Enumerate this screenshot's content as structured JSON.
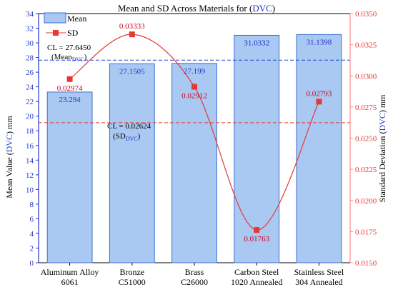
{
  "chart_data": {
    "type": "bar",
    "title": {
      "pre": "Mean and SD Across Materials for (",
      "highlight": "DVC",
      "post": ")"
    },
    "categories": [
      [
        "Aluminum Alloy",
        "6061"
      ],
      [
        "Bronze",
        "C51000"
      ],
      [
        "Brass",
        "C26000"
      ],
      [
        "Carbon Steel",
        "1020 Annealed"
      ],
      [
        "Stainless Steel",
        "304 Annealed"
      ]
    ],
    "series": [
      {
        "name": "Mean",
        "axis": "left",
        "type": "bar",
        "values": [
          23.294,
          27.1505,
          27.199,
          31.0332,
          31.1398
        ],
        "labels": [
          "23.294",
          "27.1505",
          "27.199",
          "31.0332",
          "31.1398"
        ]
      },
      {
        "name": "SD",
        "axis": "right",
        "type": "line",
        "values": [
          0.02974,
          0.03333,
          0.02912,
          0.01763,
          0.02793
        ],
        "labels": [
          "0.02974",
          "0.03333",
          "0.02912",
          "0.01763",
          "0.02793"
        ]
      }
    ],
    "y_left": {
      "label_pre": "Mean Value (",
      "label_highlight": "DVC",
      "label_post": ") mm",
      "range": [
        0,
        34
      ],
      "ticks": [
        "0",
        "2",
        "4",
        "6",
        "8",
        "10",
        "12",
        "14",
        "16",
        "18",
        "20",
        "22",
        "24",
        "26",
        "28",
        "30",
        "32",
        "34"
      ]
    },
    "y_right": {
      "label_pre": "Standard Deviation (",
      "label_highlight": "DVC",
      "label_post": ") mm",
      "range": [
        0.015,
        0.035
      ],
      "ticks": [
        "0.0150",
        "0.0175",
        "0.0200",
        "0.0225",
        "0.0250",
        "0.0275",
        "0.0300",
        "0.0325",
        "0.0350"
      ]
    },
    "control_lines": [
      {
        "axis": "left",
        "value": 27.645,
        "label_line1": "CL = 27.6450",
        "label_line2_main": "(Mean",
        "label_line2_sub": "DVC",
        "label_line2_end": ")",
        "color": "#2244dd"
      },
      {
        "axis": "right",
        "value": 0.02624,
        "label_line1": "CL = 0.02624",
        "label_line2_main": "(SD",
        "label_line2_sub": "DVC",
        "label_line2_end": ")",
        "color": "#e53935"
      }
    ],
    "legend": {
      "position": "top-left",
      "entries": [
        "Mean",
        "SD"
      ]
    },
    "colors": {
      "bar_fill": "#a9c8f2",
      "bar_stroke": "#3a6fd0",
      "sd_line": "#e53935",
      "left_axis": "#1f35c8",
      "right_axis": "#ff8a8a",
      "highlight": "#1f35c8"
    }
  }
}
